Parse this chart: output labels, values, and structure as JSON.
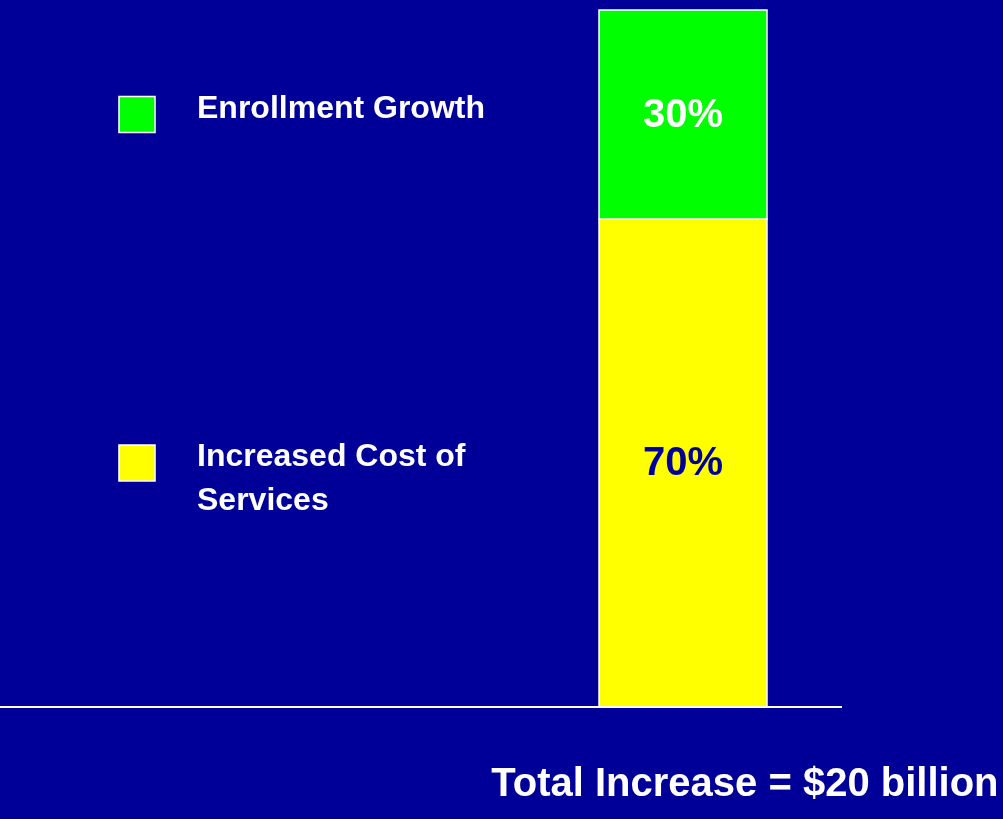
{
  "chart_data": {
    "type": "bar",
    "stacked": true,
    "legend": "left",
    "categories": [
      null
    ],
    "xlabel": "Total Increase = $20  billion",
    "series": [
      {
        "name": "Increased Cost of Services",
        "color": "#ffff00",
        "values": [
          70
        ],
        "value_labels": [
          "70%"
        ]
      },
      {
        "name": "Enrollment Growth",
        "color": "#00ff00",
        "values": [
          30
        ],
        "value_labels": [
          "30%"
        ]
      }
    ]
  }
}
